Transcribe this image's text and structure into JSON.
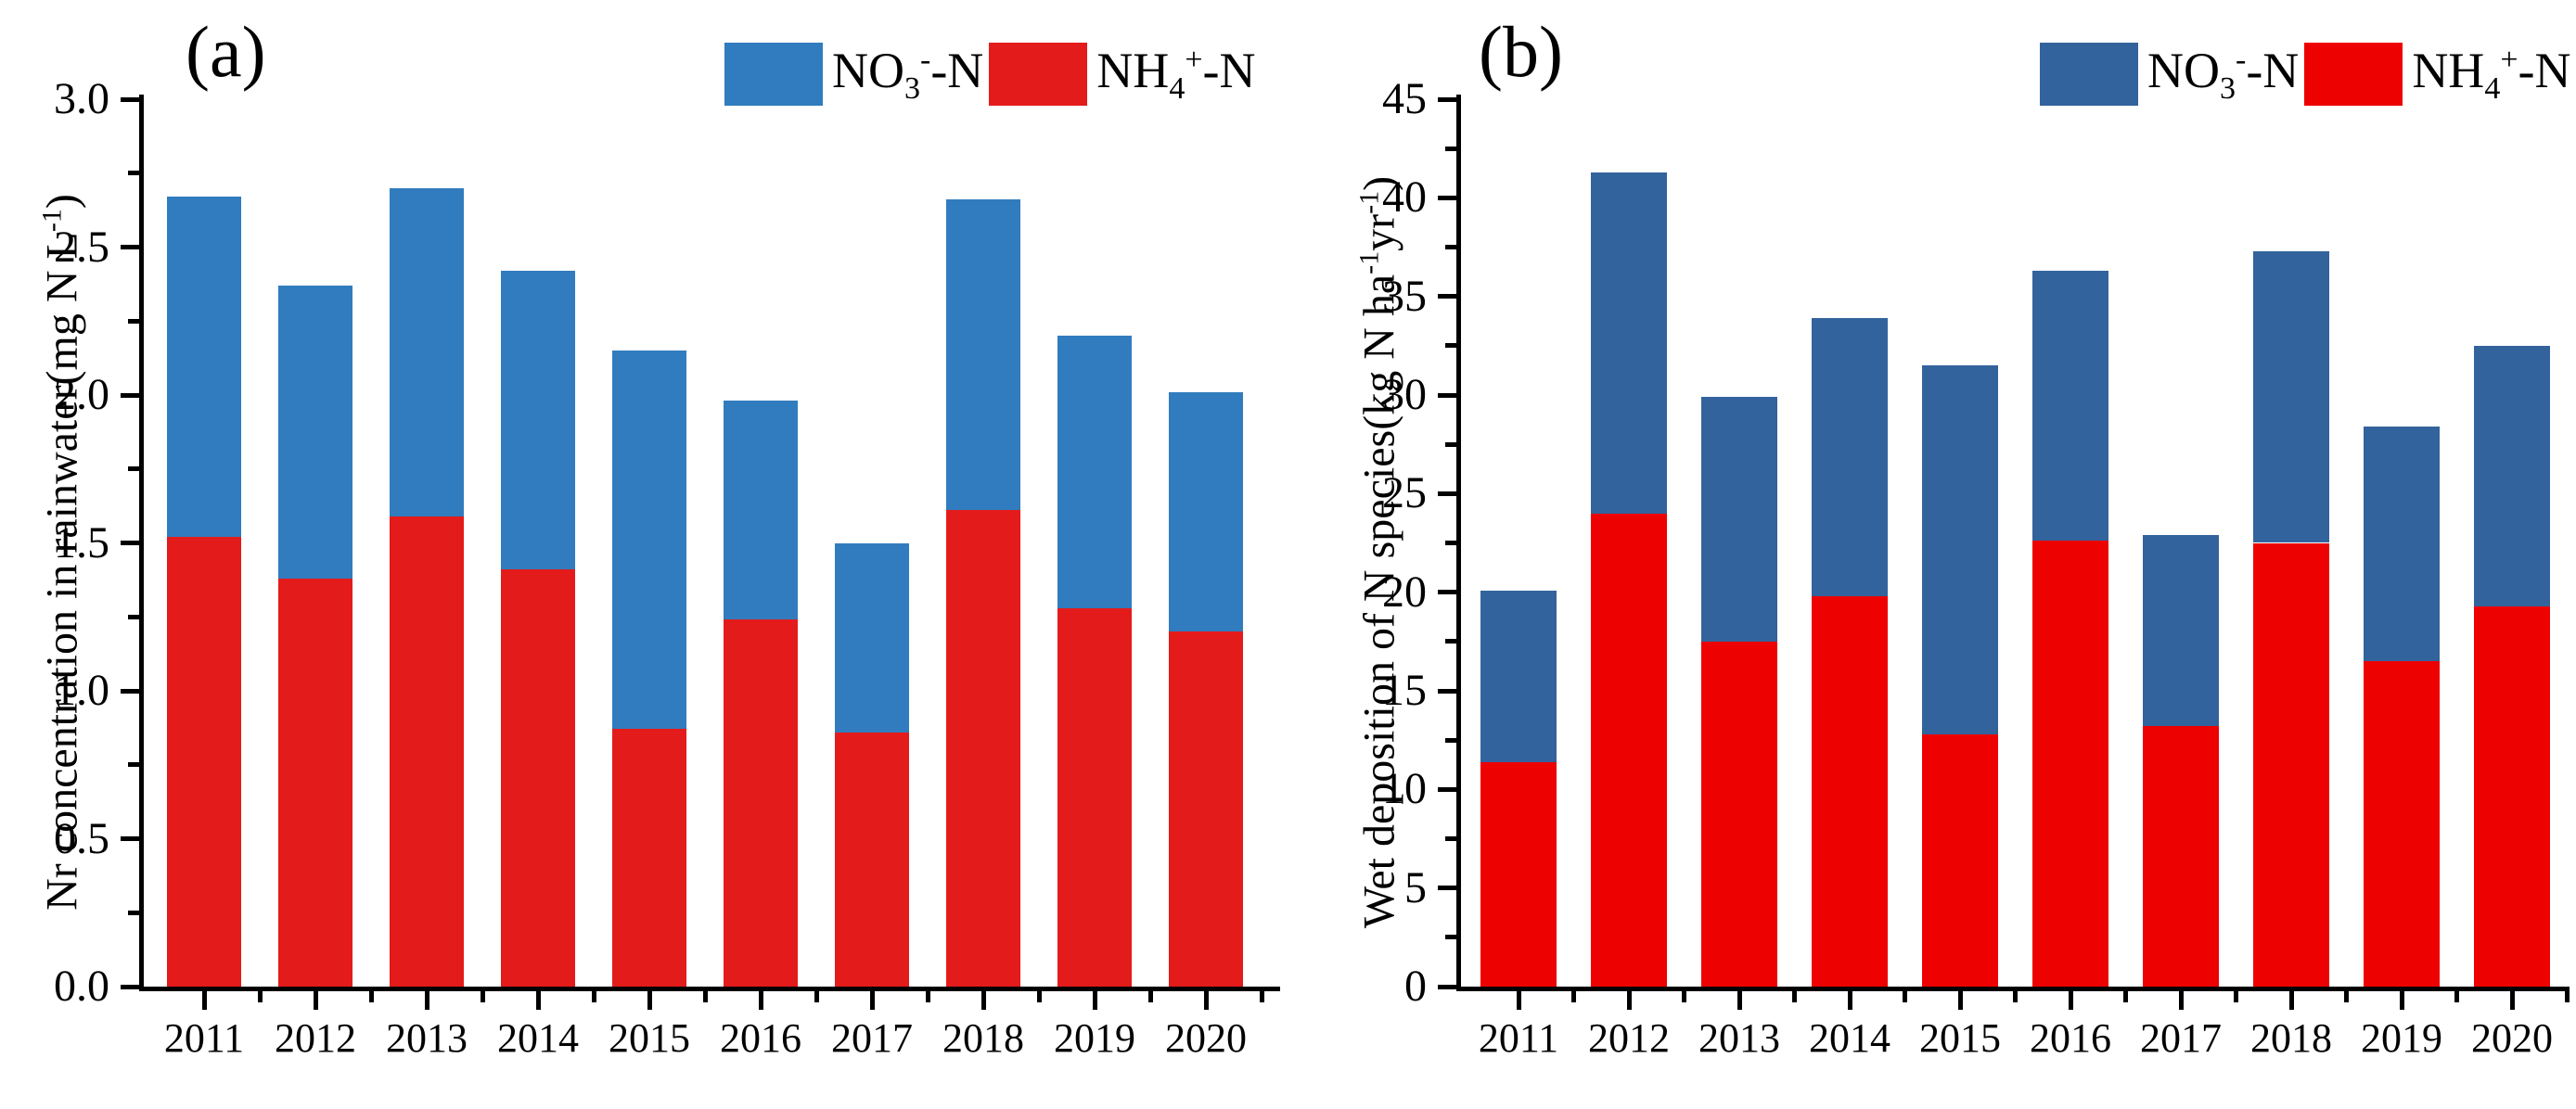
{
  "chart_data": [
    {
      "type": "bar",
      "stacked": true,
      "panel": "(a)",
      "categories": [
        "2011",
        "2012",
        "2013",
        "2014",
        "2015",
        "2016",
        "2017",
        "2018",
        "2019",
        "2020"
      ],
      "series": [
        {
          "name": "NO₃⁻-N",
          "color": "#317CBE",
          "values": [
            1.15,
            0.99,
            1.11,
            1.01,
            1.28,
            0.74,
            0.64,
            1.05,
            0.92,
            0.81
          ]
        },
        {
          "name": "NH₄⁺-N",
          "color": "#E41B1B",
          "values": [
            1.52,
            1.38,
            1.59,
            1.41,
            0.87,
            1.24,
            0.86,
            1.61,
            1.28,
            1.2
          ]
        }
      ],
      "totals": [
        2.67,
        2.37,
        2.7,
        2.42,
        2.15,
        1.98,
        1.5,
        2.66,
        2.2,
        2.01
      ],
      "stack_bottom_series": "NH₄⁺-N",
      "title": "",
      "xlabel": "",
      "ylabel": "Nr concentration in rainwater(mg N L-1)",
      "ylim": [
        0,
        3.0
      ],
      "y_major_step": 0.5,
      "y_minor_step": 0.25,
      "grid": false,
      "legend_position": "top-right"
    },
    {
      "type": "bar",
      "stacked": true,
      "panel": "(b)",
      "categories": [
        "2011",
        "2012",
        "2013",
        "2014",
        "2015",
        "2016",
        "2017",
        "2018",
        "2019",
        "2020"
      ],
      "series": [
        {
          "name": "NO₃⁻-N",
          "color": "#33639C",
          "values": [
            8.7,
            17.3,
            12.4,
            14.1,
            18.7,
            13.7,
            9.7,
            14.8,
            11.9,
            13.2
          ]
        },
        {
          "name": "NH₄⁺-N",
          "color": "#EE0101",
          "values": [
            11.4,
            24.0,
            17.5,
            19.8,
            12.8,
            22.6,
            13.2,
            22.5,
            16.5,
            19.3
          ]
        }
      ],
      "totals": [
        20.1,
        41.3,
        29.9,
        33.9,
        31.5,
        36.3,
        22.9,
        37.3,
        28.4,
        32.5
      ],
      "stack_bottom_series": "NH₄⁺-N",
      "title": "",
      "xlabel": "",
      "ylabel": "Wet deposition of N species(kg N ha-1yr-1)",
      "ylim": [
        0,
        45
      ],
      "y_major_step": 5,
      "y_minor_step": 2.5,
      "grid": false,
      "legend_position": "top-right"
    }
  ],
  "panels": [
    {
      "id": "a",
      "letter": "(a)",
      "y_tick_labels": [
        "0.0",
        "0.5",
        "1.0",
        "1.5",
        "2.0",
        "2.5",
        "3.0"
      ],
      "ylabel_segments": [
        {
          "t": "Nr concentration in rainwater(mg N L"
        },
        {
          "t": "-1",
          "sup": true
        },
        {
          "t": ")"
        }
      ],
      "legend": [
        {
          "base": "NO",
          "sub": "3",
          "sup": "-",
          "tail": "-N"
        },
        {
          "base": "NH",
          "sub": "4",
          "sup": "+",
          "tail": "-N"
        }
      ]
    },
    {
      "id": "b",
      "letter": "(b)",
      "y_tick_labels": [
        "0",
        "5",
        "10",
        "15",
        "20",
        "25",
        "30",
        "35",
        "40",
        "45"
      ],
      "ylabel_segments": [
        {
          "t": "Wet deposition of N species(kg N ha"
        },
        {
          "t": "-1",
          "sup": true
        },
        {
          "t": "yr"
        },
        {
          "t": "-1",
          "sup": true
        },
        {
          "t": ")"
        }
      ],
      "legend": [
        {
          "base": "NO",
          "sub": "3",
          "sup": "-",
          "tail": "-N"
        },
        {
          "base": "NH",
          "sub": "4",
          "sup": "+",
          "tail": "-N"
        }
      ]
    }
  ]
}
